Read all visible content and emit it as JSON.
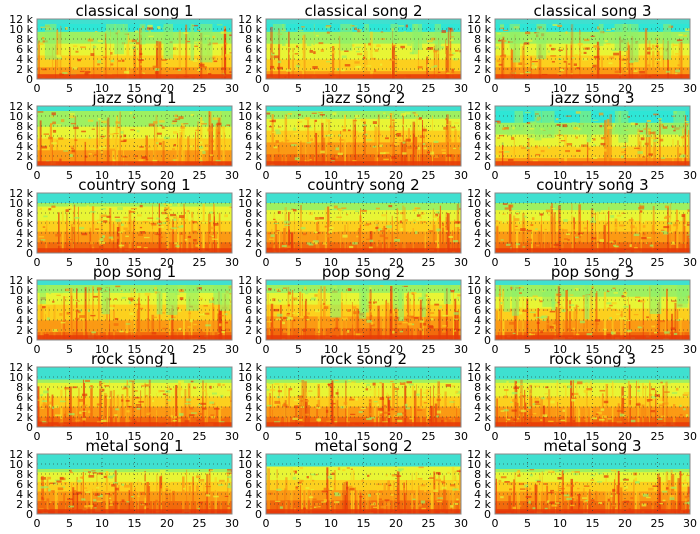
{
  "chart_data": {
    "type": "heatmap",
    "panels": [
      {
        "title": "classical song 1",
        "genre": "classical",
        "density": 0.78,
        "cutoff_khz": 11
      },
      {
        "title": "classical song 2",
        "genre": "classical",
        "density": 0.7,
        "cutoff_khz": 11
      },
      {
        "title": "classical song 3",
        "genre": "classical",
        "density": 0.8,
        "cutoff_khz": 11
      },
      {
        "title": "jazz song 1",
        "genre": "jazz",
        "density": 1.0,
        "cutoff_khz": 11
      },
      {
        "title": "jazz song 2",
        "genre": "jazz",
        "density": 1.25,
        "cutoff_khz": 11
      },
      {
        "title": "jazz song 3",
        "genre": "jazz",
        "density": 0.65,
        "cutoff_khz": 11
      },
      {
        "title": "country song 1",
        "genre": "country",
        "density": 1.35,
        "cutoff_khz": 10
      },
      {
        "title": "country song 2",
        "genre": "country",
        "density": 1.3,
        "cutoff_khz": 10
      },
      {
        "title": "country song 3",
        "genre": "country",
        "density": 1.3,
        "cutoff_khz": 10
      },
      {
        "title": "pop song 1",
        "genre": "pop",
        "density": 1.2,
        "cutoff_khz": 11
      },
      {
        "title": "pop song 2",
        "genre": "pop",
        "density": 1.25,
        "cutoff_khz": 11
      },
      {
        "title": "pop song 3",
        "genre": "pop",
        "density": 1.15,
        "cutoff_khz": 11
      },
      {
        "title": "rock song 1",
        "genre": "rock",
        "density": 1.35,
        "cutoff_khz": 9.5
      },
      {
        "title": "rock song 2",
        "genre": "rock",
        "density": 1.35,
        "cutoff_khz": 9.5
      },
      {
        "title": "rock song 3",
        "genre": "rock",
        "density": 1.35,
        "cutoff_khz": 9.5
      },
      {
        "title": "metal song 1",
        "genre": "metal",
        "density": 1.45,
        "cutoff_khz": 9
      },
      {
        "title": "metal song 2",
        "genre": "metal",
        "density": 1.5,
        "cutoff_khz": 9.5
      },
      {
        "title": "metal song 3",
        "genre": "metal",
        "density": 1.45,
        "cutoff_khz": 9
      }
    ],
    "rows": 6,
    "cols": 3,
    "x_ticks": [
      "0",
      "5",
      "10",
      "15",
      "20",
      "25",
      "30"
    ],
    "y_ticks": [
      "0",
      "2 k",
      "4 k",
      "6 k",
      "8 k",
      "10 k",
      "12 k"
    ],
    "xlim": [
      0,
      30
    ],
    "ylim": [
      0,
      12000
    ],
    "grid": true,
    "colormap": [
      "#00c9ff",
      "#2ee6d6",
      "#9ef060",
      "#e8f535",
      "#fcd01e",
      "#fb9a14",
      "#f26a0c",
      "#e63a08"
    ]
  }
}
